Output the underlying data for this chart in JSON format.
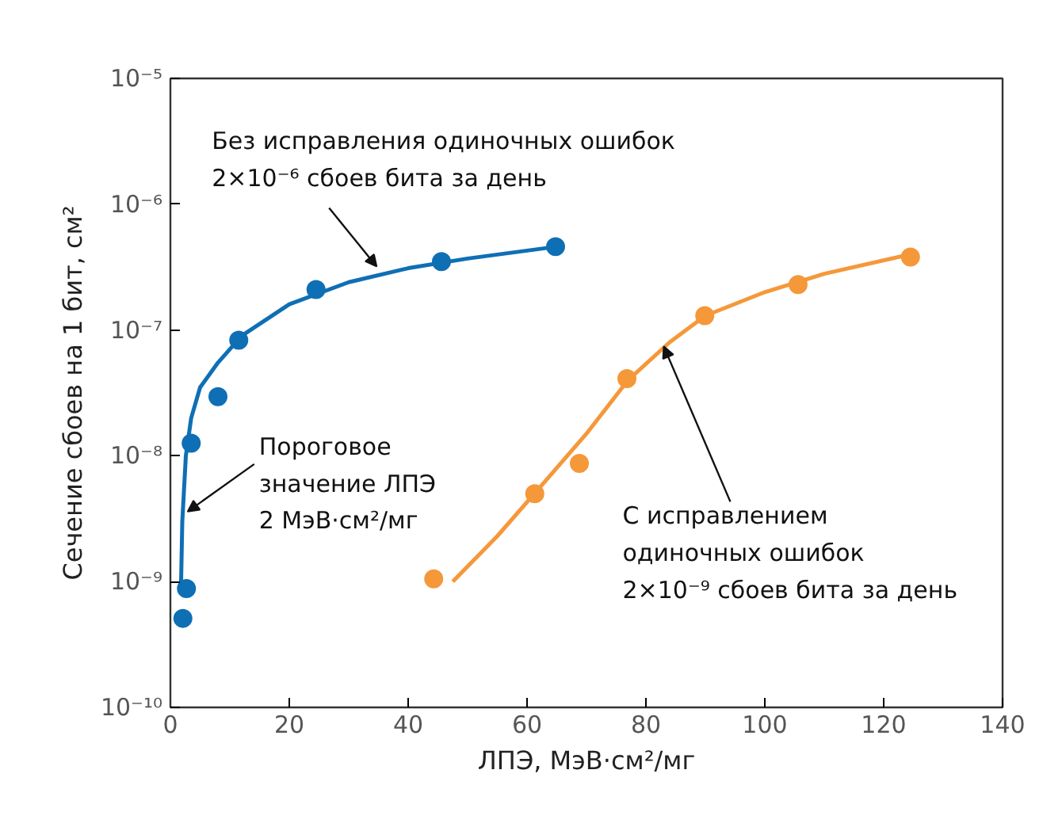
{
  "chart_data": {
    "type": "scatter",
    "xlabel": "ЛПЭ, МэВ·см²/мг",
    "ylabel": "Сечение сбоев на 1 бит, см²",
    "log": "y",
    "grid": false,
    "xlim": [
      0,
      140
    ],
    "xticks": [
      0,
      20,
      40,
      60,
      80,
      100,
      120,
      140
    ],
    "ylim": [
      1e-10,
      1e-05
    ],
    "yticks": [
      {
        "value": 1e-10,
        "label": "10⁻¹⁰"
      },
      {
        "value": 1e-09,
        "label": "10⁻⁹"
      },
      {
        "value": 1e-08,
        "label": "10⁻⁸"
      },
      {
        "value": 1e-07,
        "label": "10⁻⁷"
      },
      {
        "value": 1e-06,
        "label": "10⁻⁶"
      },
      {
        "value": 1e-05,
        "label": "10⁻⁵"
      }
    ],
    "series": [
      {
        "type": "line",
        "marker": "none",
        "color": "#0f6fb5",
        "x": [
          1.8,
          2.0,
          2.6,
          3.5,
          5,
          8,
          12,
          20,
          30,
          40,
          50,
          65
        ],
        "values": [
          1e-09,
          3e-09,
          1e-08,
          2e-08,
          3.5e-08,
          5.5e-08,
          9e-08,
          1.6e-07,
          2.4e-07,
          3.1e-07,
          3.7e-07,
          4.6e-07
        ]
      },
      {
        "type": "line",
        "marker": "none",
        "color": "#f5983a",
        "x": [
          47.5,
          55,
          62,
          70,
          77,
          84,
          90,
          100,
          110,
          124.5
        ],
        "values": [
          1e-09,
          2.3e-09,
          5.5e-09,
          1.5e-08,
          4e-08,
          8e-08,
          1.3e-07,
          2e-07,
          2.8e-07,
          4e-07
        ]
      },
      {
        "marker": "circle",
        "color": "#0f6fb5",
        "x": [
          2.1,
          2.7,
          3.5,
          8.0,
          11.5,
          24.5,
          45.6,
          64.8
        ],
        "values": [
          5.1e-10,
          8.8e-10,
          1.26e-08,
          2.95e-08,
          8.3e-08,
          2.1e-07,
          3.5e-07,
          4.6e-07
        ]
      },
      {
        "marker": "circle",
        "color": "#f5983a",
        "x": [
          44.3,
          61.3,
          68.8,
          76.8,
          89.9,
          105.6,
          124.5
        ],
        "values": [
          1.05e-09,
          5e-09,
          8.7e-09,
          4.1e-08,
          1.3e-07,
          2.3e-07,
          3.8e-07
        ]
      }
    ],
    "annotations": [
      {
        "text": "Без исправления одиночных ошибок\n2×10⁻⁶ сбоев бита за день",
        "x": 34.7,
        "y": 3.2e-07
      },
      {
        "text": "Пороговое\nзначение ЛПЭ\n2 МэВ·см²/мг",
        "x": 2.9,
        "y": 3.6e-09
      },
      {
        "text": "С исправлением\nодиночных ошибок\n2×10⁻⁹ сбоев бита за день",
        "x": 83,
        "y": 7.4e-08
      }
    ]
  }
}
